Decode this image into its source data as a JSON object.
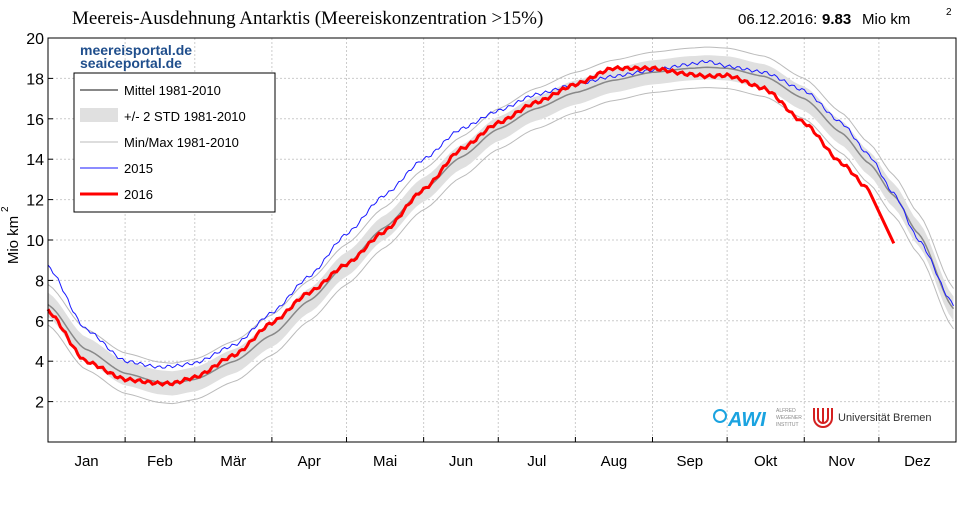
{
  "chart_data": {
    "type": "line",
    "title": "Meereis-Ausdehnung Antarktis (Meereiskonzentration >15%)",
    "date_label": "06.12.2016:",
    "current_value": "9.83",
    "current_unit": "Mio km",
    "ylabel": "Mio km",
    "unit_sup": "2",
    "ylim": [
      0,
      20
    ],
    "yticks": [
      2,
      4,
      6,
      8,
      10,
      12,
      14,
      16,
      18,
      20
    ],
    "months": [
      "Jan",
      "Feb",
      "Mär",
      "Apr",
      "Mai",
      "Jun",
      "Jul",
      "Aug",
      "Sep",
      "Okt",
      "Nov",
      "Dez"
    ],
    "grid": true,
    "legend_position": "top-left",
    "watermark": [
      "meereisportal.de",
      "seaiceportal.de"
    ],
    "logos": {
      "awi": "AWI",
      "awi_sub": [
        "ALFRED",
        "WEGENER",
        "INSTITUT"
      ],
      "bremen": "Universität Bremen"
    },
    "x_days": [
      0,
      15,
      31,
      45,
      50,
      59,
      75,
      90,
      105,
      120,
      135,
      151,
      166,
      181,
      196,
      212,
      227,
      243,
      258,
      265,
      273,
      288,
      304,
      319,
      330,
      340,
      350,
      364
    ],
    "series": [
      {
        "name": "Mittel 1981-2010",
        "color": "#888888",
        "values": [
          6.8,
          4.6,
          3.4,
          2.95,
          2.9,
          3.1,
          4.0,
          5.3,
          7.0,
          8.8,
          10.6,
          12.5,
          14.1,
          15.5,
          16.5,
          17.3,
          17.9,
          18.3,
          18.5,
          18.55,
          18.5,
          18.1,
          17.0,
          15.3,
          13.8,
          12.2,
          10.3,
          6.6
        ]
      },
      {
        "name": "2015",
        "color": "#1a1aff",
        "values": [
          8.7,
          5.6,
          4.0,
          3.7,
          3.75,
          3.9,
          4.8,
          6.4,
          8.2,
          10.3,
          12.2,
          14.0,
          15.5,
          16.4,
          17.2,
          17.7,
          18.1,
          18.4,
          18.7,
          18.85,
          18.6,
          18.3,
          17.4,
          15.8,
          14.2,
          12.3,
          10.0,
          6.8
        ]
      },
      {
        "name": "2016",
        "color": "#ff0000",
        "values": [
          6.5,
          4.0,
          3.1,
          2.9,
          2.9,
          3.2,
          4.3,
          5.9,
          7.4,
          8.8,
          10.4,
          12.5,
          14.5,
          15.8,
          16.8,
          17.7,
          18.5,
          18.5,
          18.2,
          18.1,
          18.15,
          17.5,
          15.8,
          13.8,
          12.5,
          null,
          null,
          null
        ]
      }
    ],
    "last_day_2016": 340,
    "std_halfwidth": 0.6,
    "minmax_halfwidth": 1.0,
    "legend": [
      {
        "label": "Mittel 1981-2010"
      },
      {
        "label": "+/- 2 STD 1981-2010"
      },
      {
        "label": "Min/Max 1981-2010"
      },
      {
        "label": "2015"
      },
      {
        "label": "2016"
      }
    ]
  }
}
